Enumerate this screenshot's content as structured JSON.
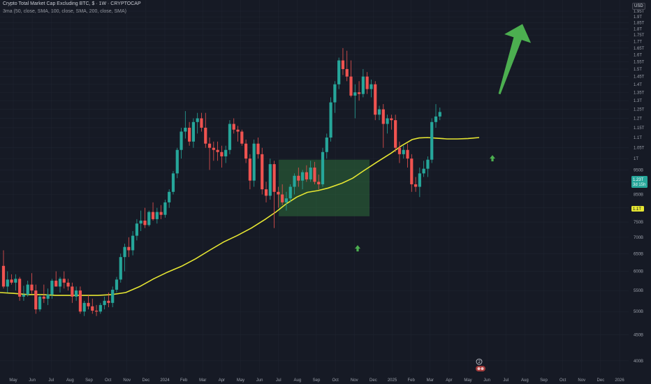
{
  "legend": {
    "title": "Crypto Total Market Cap Excluding BTC, $ · 1W · CRYPTOCAP",
    "study": "3ma (50, close, SMA, 100, close, SMA, 200, close, SMA)"
  },
  "currency_button": "USD",
  "colors": {
    "up": "#26a69a",
    "down": "#ef5350",
    "ma": "#e6e632",
    "zone": "#2e6b3a",
    "arrow": "#4caf50",
    "grid": "#1f2430",
    "background": "#161a25"
  },
  "chart_data": {
    "type": "candlestick",
    "scale": "log",
    "ylim": [
      380000000000,
      2000000000000
    ],
    "y_ticks": [
      "1.95T",
      "1.9T",
      "1.85T",
      "1.8T",
      "1.75T",
      "1.7T",
      "1.65T",
      "1.6T",
      "1.55T",
      "1.5T",
      "1.45T",
      "1.4T",
      "1.35T",
      "1.3T",
      "1.25T",
      "1.2T",
      "1.15T",
      "1.1T",
      "1.05T",
      "1T",
      "950B",
      "900B",
      "850B",
      "800B",
      "750B",
      "700B",
      "650B",
      "600B",
      "550B",
      "500B",
      "450B",
      "400B"
    ],
    "x_ticks": [
      "May",
      "Jun",
      "Jul",
      "Aug",
      "Sep",
      "Oct",
      "Nov",
      "Dec",
      "2024",
      "Feb",
      "Mar",
      "Apr",
      "May",
      "Jun",
      "Jul",
      "Aug",
      "Sep",
      "Oct",
      "Nov",
      "Dec",
      "2025",
      "Feb",
      "Mar",
      "Apr",
      "May",
      "Jun",
      "Jul",
      "Aug",
      "Sep",
      "Oct",
      "Nov",
      "Dec",
      "2026"
    ],
    "price_tag": {
      "value": "1.23T",
      "countdown": "3d 15h"
    },
    "ma_tag": "1.1T",
    "events_badge": "2",
    "candles": [
      [
        615,
        660,
        555,
        560
      ],
      [
        560,
        600,
        545,
        578
      ],
      [
        578,
        592,
        565,
        570
      ],
      [
        570,
        592,
        550,
        580
      ],
      [
        580,
        585,
        525,
        535
      ],
      [
        535,
        562,
        525,
        540
      ],
      [
        540,
        575,
        535,
        565
      ],
      [
        565,
        595,
        542,
        550
      ],
      [
        550,
        565,
        495,
        505
      ],
      [
        505,
        540,
        500,
        535
      ],
      [
        535,
        565,
        520,
        530
      ],
      [
        530,
        555,
        515,
        540
      ],
      [
        540,
        580,
        530,
        575
      ],
      [
        575,
        600,
        560,
        560
      ],
      [
        560,
        585,
        545,
        580
      ],
      [
        580,
        600,
        555,
        570
      ],
      [
        570,
        580,
        550,
        560
      ],
      [
        560,
        570,
        520,
        535
      ],
      [
        535,
        560,
        525,
        550
      ],
      [
        550,
        560,
        495,
        500
      ],
      [
        500,
        525,
        490,
        520
      ],
      [
        520,
        540,
        505,
        512
      ],
      [
        512,
        530,
        495,
        502
      ],
      [
        502,
        515,
        490,
        500
      ],
      [
        500,
        520,
        495,
        515
      ],
      [
        515,
        535,
        505,
        525
      ],
      [
        525,
        545,
        510,
        520
      ],
      [
        520,
        560,
        510,
        552
      ],
      [
        552,
        585,
        545,
        578
      ],
      [
        578,
        650,
        570,
        640
      ],
      [
        640,
        680,
        600,
        670
      ],
      [
        670,
        700,
        640,
        660
      ],
      [
        660,
        720,
        645,
        705
      ],
      [
        705,
        760,
        690,
        745
      ],
      [
        745,
        790,
        720,
        755
      ],
      [
        755,
        800,
        730,
        740
      ],
      [
        740,
        790,
        735,
        785
      ],
      [
        785,
        820,
        755,
        760
      ],
      [
        760,
        800,
        745,
        785
      ],
      [
        785,
        810,
        760,
        775
      ],
      [
        775,
        830,
        765,
        820
      ],
      [
        820,
        870,
        800,
        860
      ],
      [
        860,
        945,
        850,
        935
      ],
      [
        935,
        1050,
        915,
        1040
      ],
      [
        1040,
        1150,
        1000,
        1130
      ],
      [
        1130,
        1240,
        1095,
        1150
      ],
      [
        1150,
        1180,
        1060,
        1080
      ],
      [
        1080,
        1200,
        1050,
        1180
      ],
      [
        1180,
        1230,
        1120,
        1200
      ],
      [
        1200,
        1230,
        1130,
        1150
      ],
      [
        1150,
        1230,
        1050,
        1070
      ],
      [
        1070,
        1100,
        950,
        1050
      ],
      [
        1050,
        1080,
        990,
        1040
      ],
      [
        1040,
        1080,
        990,
        1030
      ],
      [
        1030,
        1060,
        960,
        1010
      ],
      [
        1010,
        1060,
        980,
        1040
      ],
      [
        1040,
        1190,
        1020,
        1170
      ],
      [
        1170,
        1200,
        1120,
        1140
      ],
      [
        1140,
        1160,
        1080,
        1130
      ],
      [
        1130,
        1140,
        1060,
        1070
      ],
      [
        1070,
        1090,
        980,
        1000
      ],
      [
        1000,
        1020,
        870,
        905
      ],
      [
        905,
        1090,
        880,
        1070
      ],
      [
        1070,
        1100,
        1000,
        1020
      ],
      [
        1020,
        1050,
        850,
        870
      ],
      [
        870,
        900,
        820,
        845
      ],
      [
        845,
        1000,
        830,
        975
      ],
      [
        975,
        990,
        730,
        860
      ],
      [
        860,
        880,
        800,
        850
      ],
      [
        850,
        890,
        810,
        820
      ],
      [
        820,
        860,
        790,
        835
      ],
      [
        835,
        890,
        820,
        880
      ],
      [
        880,
        935,
        850,
        925
      ],
      [
        925,
        960,
        880,
        905
      ],
      [
        905,
        950,
        870,
        940
      ],
      [
        940,
        970,
        900,
        910
      ],
      [
        910,
        990,
        900,
        960
      ],
      [
        960,
        985,
        890,
        900
      ],
      [
        900,
        930,
        870,
        890
      ],
      [
        890,
        1050,
        880,
        1030
      ],
      [
        1030,
        1120,
        1000,
        1100
      ],
      [
        1100,
        1320,
        1080,
        1290
      ],
      [
        1290,
        1420,
        1230,
        1400
      ],
      [
        1400,
        1580,
        1370,
        1560
      ],
      [
        1560,
        1650,
        1460,
        1500
      ],
      [
        1500,
        1630,
        1420,
        1450
      ],
      [
        1450,
        1560,
        1320,
        1330
      ],
      [
        1330,
        1400,
        1200,
        1350
      ],
      [
        1350,
        1420,
        1300,
        1340
      ],
      [
        1340,
        1500,
        1320,
        1450
      ],
      [
        1450,
        1480,
        1340,
        1370
      ],
      [
        1370,
        1430,
        1320,
        1400
      ],
      [
        1400,
        1420,
        1190,
        1220
      ],
      [
        1220,
        1270,
        1190,
        1250
      ],
      [
        1250,
        1280,
        1050,
        1170
      ],
      [
        1170,
        1220,
        1120,
        1200
      ],
      [
        1200,
        1220,
        1140,
        1190
      ],
      [
        1190,
        1220,
        1030,
        1050
      ],
      [
        1050,
        1080,
        980,
        1020
      ],
      [
        1020,
        1060,
        1000,
        1040
      ],
      [
        1040,
        1070,
        960,
        1000
      ],
      [
        1000,
        1020,
        860,
        890
      ],
      [
        890,
        920,
        860,
        880
      ],
      [
        880,
        960,
        840,
        935
      ],
      [
        935,
        990,
        920,
        955
      ],
      [
        955,
        1010,
        920,
        995
      ],
      [
        995,
        1200,
        980,
        1180
      ],
      [
        1180,
        1280,
        1150,
        1210
      ],
      [
        1210,
        1260,
        1190,
        1235
      ]
    ],
    "ma50": [
      [
        0,
        545
      ],
      [
        20,
        543
      ],
      [
        40,
        540
      ],
      [
        60,
        540
      ],
      [
        80,
        538
      ],
      [
        100,
        538
      ],
      [
        120,
        538
      ],
      [
        140,
        538
      ],
      [
        160,
        540
      ],
      [
        180,
        545
      ],
      [
        200,
        560
      ],
      [
        220,
        580
      ],
      [
        240,
        598
      ],
      [
        260,
        614
      ],
      [
        280,
        635
      ],
      [
        300,
        660
      ],
      [
        320,
        685
      ],
      [
        340,
        706
      ],
      [
        360,
        730
      ],
      [
        380,
        760
      ],
      [
        395,
        785
      ],
      [
        410,
        815
      ],
      [
        425,
        840
      ],
      [
        440,
        858
      ],
      [
        455,
        865
      ],
      [
        470,
        875
      ],
      [
        490,
        895
      ],
      [
        505,
        915
      ],
      [
        520,
        945
      ],
      [
        540,
        985
      ],
      [
        560,
        1025
      ],
      [
        575,
        1060
      ],
      [
        590,
        1090
      ],
      [
        600,
        1098
      ],
      [
        612,
        1100
      ],
      [
        625,
        1097
      ],
      [
        640,
        1093
      ],
      [
        655,
        1093
      ],
      [
        670,
        1095
      ],
      [
        686,
        1100
      ]
    ],
    "zone": {
      "x_from": 399,
      "x_to": 529,
      "y_from": 995,
      "y_to": 770
    },
    "arrows": [
      {
        "kind": "small",
        "x": 512,
        "price": 665
      },
      {
        "kind": "small",
        "x": 705,
        "price": 1000
      },
      {
        "kind": "big",
        "from_x": 715,
        "from_price": 1340,
        "to_x": 748,
        "to_price": 1840
      }
    ]
  }
}
